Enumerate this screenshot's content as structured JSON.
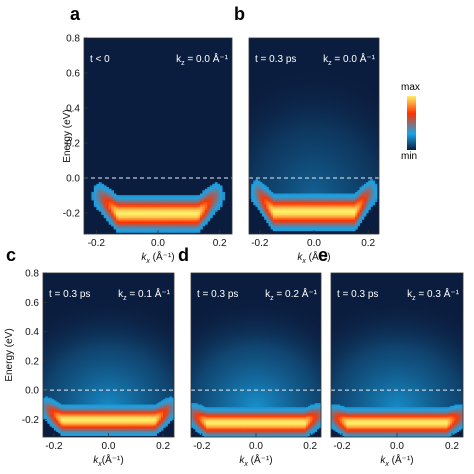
{
  "figure": {
    "panel_letters": [
      "a",
      "b",
      "c",
      "d",
      "e"
    ],
    "colorbar": {
      "max_label": "max",
      "min_label": "min",
      "colors": [
        "#0b1d3f",
        "#1aa4e6",
        "#ff3300",
        "#ffee66"
      ]
    }
  },
  "chart_data": [
    {
      "panel": "a",
      "type": "heatmap",
      "ylabel": "Energy (eV)",
      "xlabel_main": "k",
      "xlabel_sub": "x",
      "xlabel_unit": " (Å⁻¹)",
      "xticks": [
        "-0.2",
        "0.0",
        "0.2"
      ],
      "yticks": [
        "0.8",
        "0.6",
        "0.4",
        "0.2",
        "0.0",
        "-0.2"
      ],
      "xlim": [
        -0.24,
        0.24
      ],
      "ylim": [
        -0.32,
        0.8
      ],
      "fermi_level": 0.0,
      "fermi_line": "dashed",
      "inset_left": "t < 0",
      "inset_right": "k",
      "inset_sub": "z",
      "inset_value": " = 0.0 Å⁻¹",
      "band": {
        "center_energy": -0.2,
        "flat_halfwidth": 0.13,
        "edge_energy": -0.1
      },
      "diffuse_intensity": 0.0
    },
    {
      "panel": "b",
      "type": "heatmap",
      "ylabel": "",
      "xlabel_main": "k",
      "xlabel_sub": "x",
      "xlabel_unit": " (Å⁻¹)",
      "xticks": [
        "-0.2",
        "0.0",
        "0.2"
      ],
      "yticks": [],
      "xlim": [
        -0.24,
        0.24
      ],
      "ylim": [
        -0.32,
        0.8
      ],
      "fermi_level": 0.0,
      "fermi_line": "dashed",
      "inset_left": "t = 0.3 ps",
      "inset_right": "k",
      "inset_sub": "z",
      "inset_value": " = 0.0 Å⁻¹",
      "band": {
        "center_energy": -0.19,
        "flat_halfwidth": 0.15,
        "edge_energy": -0.08
      },
      "diffuse_intensity": 0.55
    },
    {
      "panel": "c",
      "type": "heatmap",
      "ylabel": "Energy (eV)",
      "xlabel_main": "k",
      "xlabel_sub": "x",
      "xlabel_unit": "(Å⁻¹)",
      "xticks": [
        "-0.2",
        "0.0",
        "0.2"
      ],
      "yticks": [
        "0.8",
        "0.6",
        "0.4",
        "0.2",
        "0.0",
        "-0.2"
      ],
      "xlim": [
        -0.24,
        0.24
      ],
      "ylim": [
        -0.32,
        0.8
      ],
      "fermi_level": 0.0,
      "fermi_line": "dashed",
      "inset_left": "t = 0.3 ps",
      "inset_right": "k",
      "inset_sub": "z",
      "inset_value": " = 0.1 Å⁻¹",
      "band": {
        "center_energy": -0.2,
        "flat_halfwidth": 0.17,
        "edge_energy": -0.12
      },
      "diffuse_intensity": 0.85
    },
    {
      "panel": "d",
      "type": "heatmap",
      "ylabel": "",
      "xlabel_main": "k",
      "xlabel_sub": "x",
      "xlabel_unit": " (Å⁻¹)",
      "xticks": [
        "-0.2",
        "0.0",
        "0.2"
      ],
      "yticks": [],
      "xlim": [
        -0.24,
        0.24
      ],
      "ylim": [
        -0.32,
        0.8
      ],
      "fermi_level": 0.0,
      "fermi_line": "dashed",
      "inset_left": "t = 0.3 ps",
      "inset_right": "k",
      "inset_sub": "z",
      "inset_value": " = 0.2 Å⁻¹",
      "band": {
        "center_energy": -0.22,
        "flat_halfwidth": 0.18,
        "edge_energy": -0.16
      },
      "diffuse_intensity": 0.9
    },
    {
      "panel": "e",
      "type": "heatmap",
      "ylabel": "",
      "xlabel_main": "k",
      "xlabel_sub": "x",
      "xlabel_unit": " (Å⁻¹)",
      "xticks": [
        "-0.2",
        "0.0",
        "0.2"
      ],
      "yticks": [],
      "xlim": [
        -0.24,
        0.24
      ],
      "ylim": [
        -0.32,
        0.8
      ],
      "fermi_level": 0.0,
      "fermi_line": "dashed",
      "inset_left": "t = 0.3 ps",
      "inset_right": "k",
      "inset_sub": "z",
      "inset_value": " = 0.3 Å⁻¹",
      "band": {
        "center_energy": -0.22,
        "flat_halfwidth": 0.18,
        "edge_energy": -0.17
      },
      "diffuse_intensity": 0.85
    }
  ]
}
